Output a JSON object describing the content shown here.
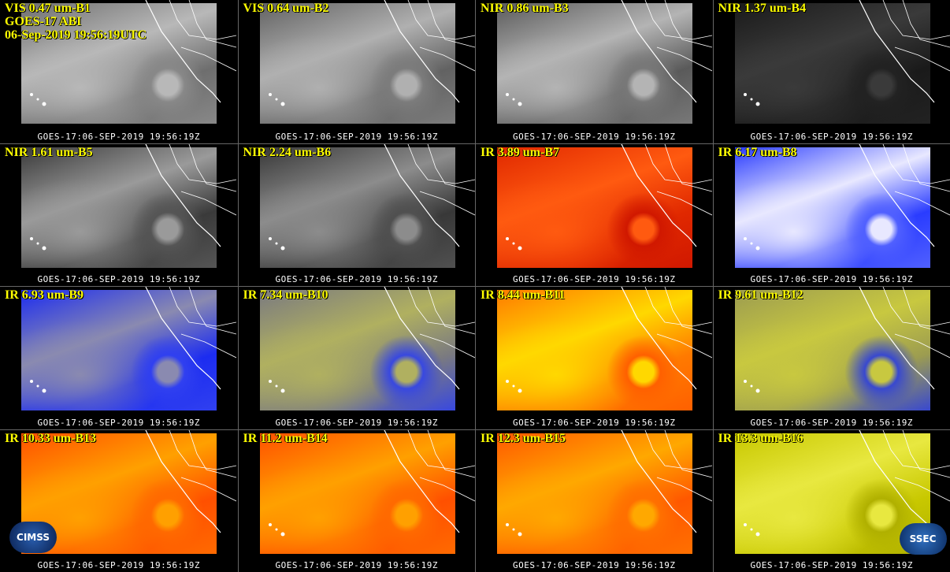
{
  "header": {
    "satellite": "GOES-17 ABI",
    "time": "06-Sep-2019 19:56:19UTC"
  },
  "panels": [
    {
      "label": "VIS 0.47 um-B1",
      "footer": "GOES-17:06-SEP-2019 19:56:19Z"
    },
    {
      "label": "VIS 0.64 um-B2",
      "footer": "GOES-17:06-SEP-2019 19:56:19Z"
    },
    {
      "label": "NIR 0.86 um-B3",
      "footer": "GOES-17:06-SEP-2019 19:56:19Z"
    },
    {
      "label": "NIR 1.37 um-B4",
      "footer": "GOES-17:06-SEP-2019 19:56:19Z"
    },
    {
      "label": "NIR 1.61 um-B5",
      "footer": "GOES-17:06-SEP-2019 19:56:19Z"
    },
    {
      "label": "NIR 2.24 um-B6",
      "footer": "GOES-17:06-SEP-2019 19:56:19Z"
    },
    {
      "label": "IR 3.89 um-B7",
      "footer": "GOES-17:06-SEP-2019 19:56:19Z"
    },
    {
      "label": "IR 6.17 um-B8",
      "footer": "GOES-17:06-SEP-2019 19:56:19Z"
    },
    {
      "label": "IR 6.93 um-B9",
      "footer": "GOES-17:06-SEP-2019 19:56:19Z"
    },
    {
      "label": "IR 7.34 um-B10",
      "footer": "GOES-17:06-SEP-2019 19:56:19Z"
    },
    {
      "label": "IR 8.44 um-B11",
      "footer": "GOES-17:06-SEP-2019 19:56:19Z"
    },
    {
      "label": "IR 9.61 um-B12",
      "footer": "GOES-17:06-SEP-2019 19:56:19Z"
    },
    {
      "label": "IR 10.33 um-B13",
      "footer": "GOES-17:06-SEP-2019 19:56:19Z"
    },
    {
      "label": "IR 11.2 um-B14",
      "footer": "GOES-17:06-SEP-2019 19:56:19Z"
    },
    {
      "label": "IR 12.3 um-B15",
      "footer": "GOES-17:06-SEP-2019 19:56:19Z"
    },
    {
      "label": "IR 13.3 um-B16",
      "footer": "GOES-17:06-SEP-2019 19:56:19Z"
    }
  ],
  "logos": {
    "left": "CIMSS",
    "right": "SSEC"
  }
}
